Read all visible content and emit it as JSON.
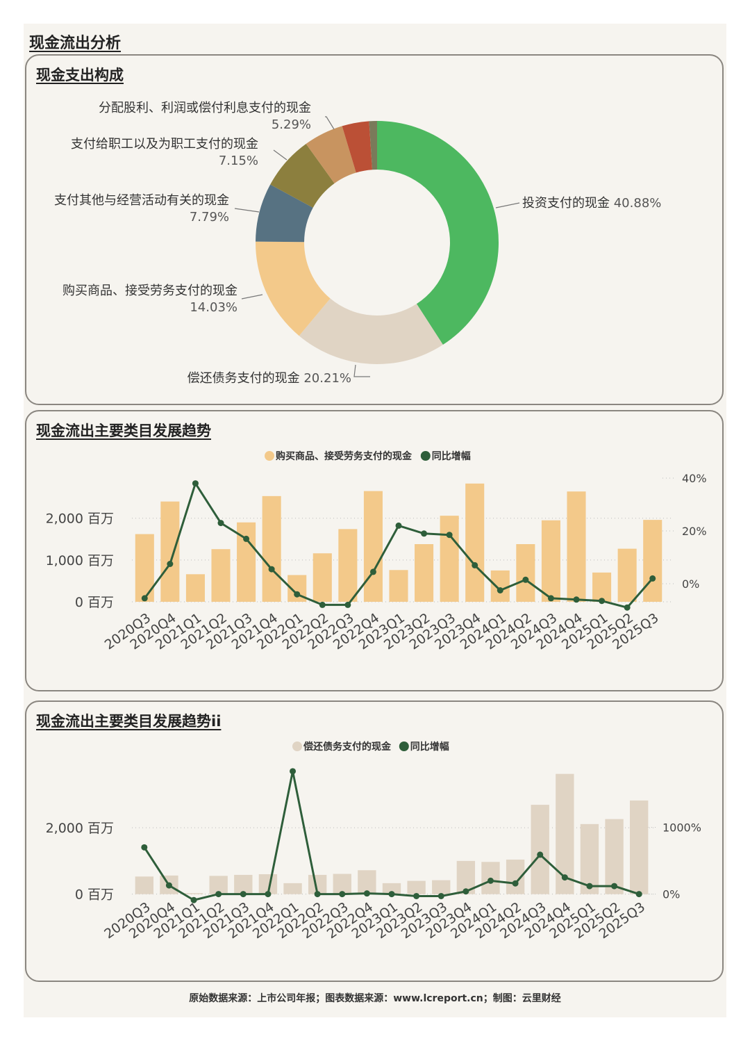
{
  "page": {
    "title": "现金流出分析"
  },
  "panels": {
    "composition": {
      "title": "现金支出构成"
    },
    "trend1": {
      "title": "现金流出主要类目发展趋势"
    },
    "trend2": {
      "title": "现金流出主要类目发展趋势ii"
    }
  },
  "footer": {
    "text": "原始数据来源：上市公司年报；图表数据来源：www.lcreport.cn；制图：云里财经"
  },
  "chart_data": [
    {
      "type": "pie",
      "title": "现金支出构成",
      "slices": [
        {
          "label": "投资支付的现金",
          "value": 40.88,
          "display": "40.88%",
          "color": "#4db860"
        },
        {
          "label": "偿还债务支付的现金",
          "value": 20.21,
          "display": "20.21%",
          "color": "#e0d4c4"
        },
        {
          "label": "购买商品、接受劳务支付的现金",
          "value": 14.03,
          "display": "14.03%",
          "color": "#f3c98a"
        },
        {
          "label": "支付其他与经营活动有关的现金",
          "value": 7.79,
          "display": "7.79%",
          "color": "#577282"
        },
        {
          "label": "支付给职工以及为职工支付的现金",
          "value": 7.15,
          "display": "7.15%",
          "color": "#8c7f3e"
        },
        {
          "label": "分配股利、利润或偿付利息支付的现金",
          "value": 5.29,
          "display": "5.29%",
          "color": "#c89460"
        },
        {
          "label": "",
          "value": 3.6,
          "display": "",
          "color": "#bb5036"
        },
        {
          "label": "",
          "value": 1.05,
          "display": "",
          "color": "#7a7a5a"
        }
      ]
    },
    {
      "type": "bar",
      "title": "现金流出主要类目发展趋势",
      "categories": [
        "2020Q3",
        "2020Q4",
        "2021Q1",
        "2021Q2",
        "2021Q3",
        "2021Q4",
        "2022Q1",
        "2022Q2",
        "2022Q3",
        "2022Q4",
        "2023Q1",
        "2023Q2",
        "2023Q3",
        "2023Q4",
        "2024Q1",
        "2024Q2",
        "2024Q3",
        "2024Q4",
        "2025Q1",
        "2025Q2",
        "2025Q3"
      ],
      "series": [
        {
          "name": "购买商品、接受劳务支付的现金",
          "type": "bar",
          "axis": "left",
          "color": "#f3c98a",
          "values": [
            1620,
            2400,
            660,
            1260,
            1900,
            2530,
            640,
            1160,
            1740,
            2650,
            760,
            1380,
            2060,
            2830,
            750,
            1380,
            1950,
            2640,
            700,
            1270,
            1960
          ]
        },
        {
          "name": "同比增幅",
          "type": "line",
          "axis": "right",
          "color": "#2e5e3a",
          "values": [
            -5.5,
            7.5,
            38,
            23,
            17,
            5.5,
            -4,
            -8,
            -8,
            4.5,
            22,
            19,
            18.5,
            7,
            -2.5,
            1.5,
            -5.5,
            -6,
            -6.5,
            -9,
            2
          ]
        }
      ],
      "yticks_left": [
        "2,000 百万",
        "1,000 百万",
        "0 百万"
      ],
      "yticks_left_values": [
        2000,
        1000,
        0
      ],
      "yticks_right": [
        "40%",
        "20%",
        "0%"
      ],
      "yticks_right_values": [
        40,
        20,
        0
      ],
      "ylim_left": [
        -200,
        2960
      ],
      "ylim_right": [
        -10,
        40
      ],
      "grid": true,
      "legend": "top-center"
    },
    {
      "type": "bar",
      "title": "现金流出主要类目发展趋势ii",
      "categories": [
        "2020Q3",
        "2020Q4",
        "2021Q1",
        "2021Q2",
        "2021Q3",
        "2021Q4",
        "2022Q1",
        "2022Q2",
        "2022Q3",
        "2022Q4",
        "2023Q1",
        "2023Q2",
        "2023Q3",
        "2023Q4",
        "2024Q1",
        "2024Q2",
        "2024Q3",
        "2024Q4",
        "2025Q1",
        "2025Q2",
        "2025Q3"
      ],
      "series": [
        {
          "name": "偿还债务支付的现金",
          "type": "bar",
          "axis": "left",
          "color": "#e0d4c4",
          "values": [
            530,
            560,
            30,
            550,
            580,
            600,
            330,
            580,
            610,
            720,
            330,
            400,
            420,
            1000,
            970,
            1040,
            2690,
            3620,
            2110,
            2260,
            2820
          ]
        },
        {
          "name": "同比增幅",
          "type": "line",
          "axis": "right",
          "color": "#2e5e3a",
          "values": [
            700,
            130,
            -90,
            0,
            0,
            0,
            1840,
            0,
            0,
            10,
            0,
            -30,
            -30,
            40,
            200,
            160,
            590,
            250,
            120,
            120,
            0
          ]
        }
      ],
      "yticks_left": [
        "2,000 百万",
        "0 百万"
      ],
      "yticks_left_values": [
        2000,
        0
      ],
      "yticks_right": [
        "1000%",
        "0%"
      ],
      "yticks_right_values": [
        1000,
        0
      ],
      "ylim_left": [
        -300,
        3780
      ],
      "ylim_right": [
        -150,
        1880
      ],
      "grid": true,
      "legend": "top-center"
    }
  ]
}
